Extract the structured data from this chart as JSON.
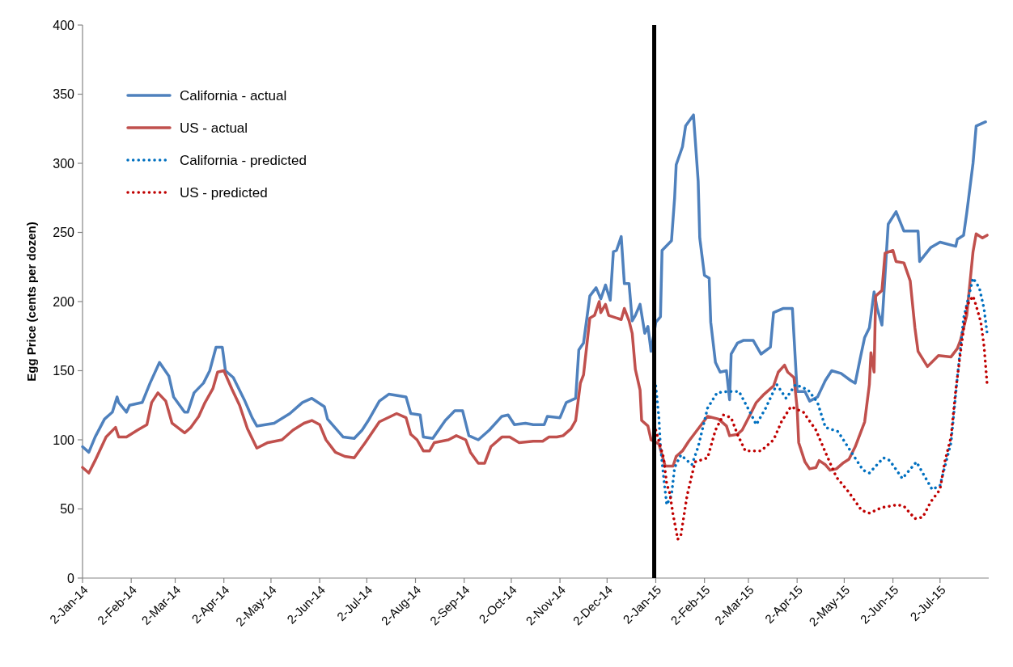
{
  "chart_data": {
    "type": "line",
    "ylabel": "Egg Price (cents per dozen)",
    "xlim": [
      "2014-01-02",
      "2015-08-02"
    ],
    "ylim": [
      0,
      400
    ],
    "yticks": [
      0,
      50,
      100,
      150,
      200,
      250,
      300,
      350,
      400
    ],
    "xticks": [
      {
        "value": "2014-01-02",
        "label": "2-Jan-14"
      },
      {
        "value": "2014-02-02",
        "label": "2-Feb-14"
      },
      {
        "value": "2014-03-02",
        "label": "2-Mar-14"
      },
      {
        "value": "2014-04-02",
        "label": "2-Apr-14"
      },
      {
        "value": "2014-05-02",
        "label": "2-May-14"
      },
      {
        "value": "2014-06-02",
        "label": "2-Jun-14"
      },
      {
        "value": "2014-07-02",
        "label": "2-Jul-14"
      },
      {
        "value": "2014-08-02",
        "label": "2-Aug-14"
      },
      {
        "value": "2014-09-02",
        "label": "2-Sep-14"
      },
      {
        "value": "2014-10-02",
        "label": "2-Oct-14"
      },
      {
        "value": "2014-11-02",
        "label": "2-Nov-14"
      },
      {
        "value": "2014-12-02",
        "label": "2-Dec-14"
      },
      {
        "value": "2015-01-02",
        "label": "2-Jan-15"
      },
      {
        "value": "2015-02-02",
        "label": "2-Feb-15"
      },
      {
        "value": "2015-03-02",
        "label": "2-Mar-15"
      },
      {
        "value": "2015-04-02",
        "label": "2-Apr-15"
      },
      {
        "value": "2015-05-02",
        "label": "2-May-15"
      },
      {
        "value": "2015-06-02",
        "label": "2-Jun-15"
      },
      {
        "value": "2015-07-02",
        "label": "2-Jul-15"
      }
    ],
    "grid": false,
    "legend": "top left",
    "marker": "none",
    "ref_lines": [
      {
        "axis": "x",
        "value": "2015-01-01",
        "color": "#000000",
        "line_style": "solid"
      }
    ],
    "series": [
      {
        "name": "California - actual",
        "color": "#4f81bd",
        "line_style": "solid",
        "x": [
          "2014-01-02",
          "2014-01-06",
          "2014-01-10",
          "2014-01-16",
          "2014-01-21",
          "2014-01-24",
          "2014-01-25",
          "2014-01-30",
          "2014-02-01",
          "2014-02-09",
          "2014-02-14",
          "2014-02-20",
          "2014-02-26",
          "2014-03-01",
          "2014-03-08",
          "2014-03-10",
          "2014-03-14",
          "2014-03-20",
          "2014-03-24",
          "2014-03-28",
          "2014-04-01",
          "2014-04-03",
          "2014-04-08",
          "2014-04-15",
          "2014-04-20",
          "2014-04-23",
          "2014-05-04",
          "2014-05-14",
          "2014-05-22",
          "2014-05-28",
          "2014-06-05",
          "2014-06-07",
          "2014-06-17",
          "2014-06-24",
          "2014-06-29",
          "2014-07-03",
          "2014-07-10",
          "2014-07-16",
          "2014-07-27",
          "2014-07-30",
          "2014-08-05",
          "2014-08-07",
          "2014-08-13",
          "2014-08-21",
          "2014-08-27",
          "2014-09-01",
          "2014-09-05",
          "2014-09-11",
          "2014-09-18",
          "2014-09-26",
          "2014-09-30",
          "2014-10-04",
          "2014-10-11",
          "2014-10-16",
          "2014-10-23",
          "2014-10-25",
          "2014-11-02",
          "2014-11-06",
          "2014-11-12",
          "2014-11-14",
          "2014-11-17",
          "2014-11-21",
          "2014-11-25",
          "2014-11-28",
          "2014-12-01",
          "2014-12-04",
          "2014-12-06",
          "2014-12-08",
          "2014-12-11",
          "2014-12-13",
          "2014-12-16",
          "2014-12-18",
          "2014-12-20",
          "2014-12-23",
          "2014-12-26",
          "2014-12-28",
          "2014-12-30",
          "2015-01-02",
          "2015-01-05",
          "2015-01-06",
          "2015-01-12",
          "2015-01-14",
          "2015-01-15",
          "2015-01-19",
          "2015-01-21",
          "2015-01-26",
          "2015-01-29",
          "2015-01-30",
          "2015-02-02",
          "2015-02-05",
          "2015-02-06",
          "2015-02-09",
          "2015-02-12",
          "2015-02-16",
          "2015-02-18",
          "2015-02-19",
          "2015-02-23",
          "2015-02-27",
          "2015-03-05",
          "2015-03-10",
          "2015-03-16",
          "2015-03-18",
          "2015-03-24",
          "2015-03-30",
          "2015-04-02",
          "2015-04-07",
          "2015-04-10",
          "2015-04-15",
          "2015-04-20",
          "2015-04-24",
          "2015-04-30",
          "2015-05-06",
          "2015-05-09",
          "2015-05-12",
          "2015-05-15",
          "2015-05-18",
          "2015-05-21",
          "2015-05-23",
          "2015-05-26",
          "2015-05-30",
          "2015-06-04",
          "2015-06-09",
          "2015-06-18",
          "2015-06-19",
          "2015-06-26",
          "2015-07-02",
          "2015-07-12",
          "2015-07-13",
          "2015-07-17",
          "2015-07-19",
          "2015-07-23",
          "2015-07-25",
          "2015-07-31"
        ],
        "values": [
          95,
          91,
          102,
          115,
          120,
          131,
          127,
          120,
          125,
          127,
          141,
          156,
          146,
          131,
          120,
          120,
          134,
          141,
          150,
          167,
          167,
          150,
          145,
          129,
          116,
          110,
          112,
          119,
          127,
          130,
          124,
          115,
          102,
          101,
          107,
          114,
          128,
          133,
          131,
          119,
          118,
          102,
          101,
          114,
          121,
          121,
          103,
          100,
          107,
          117,
          118,
          111,
          112,
          111,
          111,
          117,
          116,
          127,
          130,
          165,
          170,
          204,
          210,
          202,
          212,
          201,
          236,
          237,
          247,
          213,
          213,
          186,
          190,
          198,
          177,
          182,
          164,
          185,
          189,
          237,
          244,
          275,
          299,
          312,
          327,
          335,
          287,
          246,
          219,
          217,
          185,
          156,
          149,
          150,
          129,
          162,
          170,
          172,
          172,
          162,
          167,
          192,
          195,
          195,
          135,
          135,
          128,
          131,
          143,
          150,
          148,
          143,
          141,
          158,
          174,
          181,
          207,
          195,
          183,
          256,
          265,
          251,
          251,
          229,
          239,
          243,
          240,
          245,
          248,
          264,
          300,
          327,
          330
        ]
      },
      {
        "name": "US - actual",
        "color": "#c0504d",
        "line_style": "solid",
        "x": [
          "2014-01-02",
          "2014-01-06",
          "2014-01-10",
          "2014-01-17",
          "2014-01-23",
          "2014-01-25",
          "2014-01-30",
          "2014-02-06",
          "2014-02-12",
          "2014-02-15",
          "2014-02-19",
          "2014-02-24",
          "2014-02-28",
          "2014-03-08",
          "2014-03-12",
          "2014-03-17",
          "2014-03-21",
          "2014-03-26",
          "2014-03-29",
          "2014-04-02",
          "2014-04-07",
          "2014-04-12",
          "2014-04-17",
          "2014-04-23",
          "2014-04-30",
          "2014-05-09",
          "2014-05-16",
          "2014-05-23",
          "2014-05-28",
          "2014-06-02",
          "2014-06-06",
          "2014-06-12",
          "2014-06-18",
          "2014-06-24",
          "2014-07-01",
          "2014-07-10",
          "2014-07-21",
          "2014-07-27",
          "2014-07-30",
          "2014-08-03",
          "2014-08-07",
          "2014-08-11",
          "2014-08-14",
          "2014-08-23",
          "2014-08-28",
          "2014-09-03",
          "2014-09-06",
          "2014-09-11",
          "2014-09-15",
          "2014-09-19",
          "2014-09-26",
          "2014-10-01",
          "2014-10-07",
          "2014-10-16",
          "2014-10-22",
          "2014-10-26",
          "2014-10-31",
          "2014-11-04",
          "2014-11-09",
          "2014-11-12",
          "2014-11-15",
          "2014-11-17",
          "2014-11-21",
          "2014-11-24",
          "2014-11-27",
          "2014-11-28",
          "2014-12-01",
          "2014-12-03",
          "2014-12-11",
          "2014-12-13",
          "2014-12-16",
          "2014-12-18",
          "2014-12-20",
          "2014-12-23",
          "2014-12-24",
          "2014-12-28",
          "2014-12-30",
          "2015-01-04",
          "2015-01-08",
          "2015-01-13",
          "2015-01-15",
          "2015-01-19",
          "2015-01-23",
          "2015-01-27",
          "2015-01-31",
          "2015-02-04",
          "2015-02-11",
          "2015-02-16",
          "2015-02-18",
          "2015-02-23",
          "2015-02-26",
          "2015-03-03",
          "2015-03-07",
          "2015-03-12",
          "2015-03-18",
          "2015-03-21",
          "2015-03-25",
          "2015-03-27",
          "2015-03-31",
          "2015-04-02",
          "2015-04-03",
          "2015-04-07",
          "2015-04-10",
          "2015-04-14",
          "2015-04-16",
          "2015-04-20",
          "2015-04-23",
          "2015-04-27",
          "2015-05-01",
          "2015-05-05",
          "2015-05-09",
          "2015-05-13",
          "2015-05-15",
          "2015-05-18",
          "2015-05-19",
          "2015-05-21",
          "2015-05-22",
          "2015-05-26",
          "2015-05-28",
          "2015-06-02",
          "2015-06-04",
          "2015-06-09",
          "2015-06-13",
          "2015-06-16",
          "2015-06-18",
          "2015-06-24",
          "2015-07-01",
          "2015-07-09",
          "2015-07-13",
          "2015-07-15",
          "2015-07-19",
          "2015-07-23",
          "2015-07-25",
          "2015-07-29",
          "2015-08-01"
        ],
        "values": [
          80,
          76,
          85,
          102,
          109,
          102,
          102,
          107,
          111,
          127,
          134,
          128,
          112,
          105,
          109,
          117,
          127,
          137,
          149,
          150,
          137,
          125,
          108,
          94,
          98,
          100,
          107,
          112,
          114,
          111,
          100,
          91,
          88,
          87,
          98,
          113,
          119,
          116,
          104,
          100,
          92,
          92,
          98,
          100,
          103,
          100,
          91,
          83,
          83,
          95,
          102,
          102,
          98,
          99,
          99,
          102,
          102,
          103,
          108,
          114,
          141,
          147,
          188,
          190,
          200,
          192,
          198,
          190,
          187,
          195,
          186,
          177,
          151,
          136,
          114,
          110,
          100,
          97,
          81,
          81,
          88,
          92,
          99,
          105,
          111,
          117,
          115,
          110,
          103,
          104,
          107,
          118,
          127,
          133,
          139,
          149,
          154,
          149,
          145,
          123,
          98,
          84,
          79,
          80,
          85,
          82,
          78,
          79,
          83,
          86,
          95,
          107,
          113,
          140,
          163,
          149,
          204,
          208,
          235,
          237,
          229,
          228,
          215,
          181,
          164,
          153,
          161,
          160,
          166,
          172,
          190,
          236,
          249,
          246,
          248
        ]
      },
      {
        "name": "California - predicted",
        "color": "#0070c0",
        "line_style": "dotted",
        "x": [
          "2015-01-02",
          "2015-01-04",
          "2015-01-05",
          "2015-01-07",
          "2015-01-09",
          "2015-01-12",
          "2015-01-14",
          "2015-01-18",
          "2015-01-25",
          "2015-01-29",
          "2015-02-04",
          "2015-02-10",
          "2015-02-17",
          "2015-02-24",
          "2015-03-03",
          "2015-03-07",
          "2015-03-13",
          "2015-03-20",
          "2015-03-26",
          "2015-04-01",
          "2015-04-09",
          "2015-04-15",
          "2015-04-20",
          "2015-04-28",
          "2015-05-06",
          "2015-05-14",
          "2015-05-18",
          "2015-05-27",
          "2015-05-31",
          "2015-06-08",
          "2015-06-17",
          "2015-06-27",
          "2015-07-02",
          "2015-07-09",
          "2015-07-13",
          "2015-07-17",
          "2015-07-23",
          "2015-07-27",
          "2015-07-30",
          "2015-08-01"
        ],
        "values": [
          139,
          116,
          95,
          73,
          53,
          60,
          80,
          89,
          82,
          95,
          123,
          134,
          135,
          135,
          120,
          111,
          123,
          140,
          130,
          140,
          136,
          127,
          109,
          106,
          92,
          78,
          76,
          87,
          85,
          72,
          84,
          64,
          67,
          98,
          145,
          188,
          217,
          210,
          195,
          177
        ]
      },
      {
        "name": "US - predicted",
        "color": "#c00000",
        "line_style": "dotted",
        "x": [
          "2015-01-02",
          "2015-01-05",
          "2015-01-07",
          "2015-01-09",
          "2015-01-11",
          "2015-01-13",
          "2015-01-16",
          "2015-01-18",
          "2015-01-22",
          "2015-01-27",
          "2015-02-04",
          "2015-02-09",
          "2015-02-14",
          "2015-02-19",
          "2015-02-23",
          "2015-02-28",
          "2015-03-10",
          "2015-03-18",
          "2015-03-23",
          "2015-03-29",
          "2015-04-06",
          "2015-04-14",
          "2015-04-20",
          "2015-04-27",
          "2015-05-05",
          "2015-05-13",
          "2015-05-18",
          "2015-05-26",
          "2015-06-05",
          "2015-06-09",
          "2015-06-16",
          "2015-06-21",
          "2015-06-26",
          "2015-07-02",
          "2015-07-05",
          "2015-07-09",
          "2015-07-12",
          "2015-07-15",
          "2015-07-19",
          "2015-07-23",
          "2015-07-25",
          "2015-07-28",
          "2015-07-30",
          "2015-08-01"
        ],
        "values": [
          107,
          95,
          87,
          68,
          61,
          46,
          28,
          31,
          60,
          84,
          87,
          107,
          118,
          116,
          104,
          92,
          92,
          100,
          113,
          124,
          120,
          107,
          91,
          73,
          62,
          49,
          47,
          51,
          53,
          52,
          43,
          44,
          55,
          64,
          84,
          102,
          136,
          163,
          197,
          204,
          197,
          185,
          168,
          140
        ]
      }
    ]
  }
}
